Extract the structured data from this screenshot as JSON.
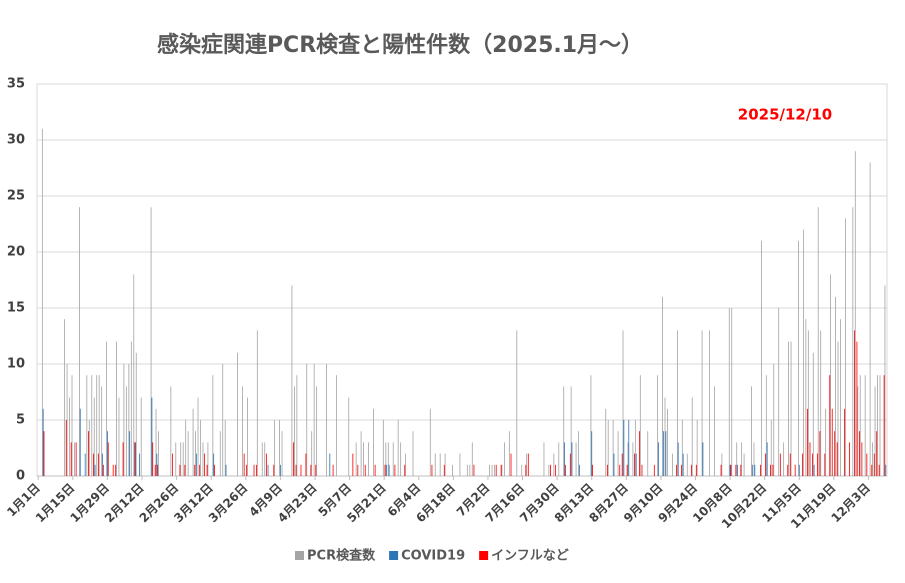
{
  "chart_data": {
    "type": "bar",
    "title": "感染症関連PCR検査と陽性件数（2025.1月～）",
    "annotation": "2025/12/10",
    "annotation_color": "#ff0000",
    "ylim": [
      0,
      35
    ],
    "yticks": [
      0,
      5,
      10,
      15,
      20,
      25,
      30,
      35
    ],
    "grid": true,
    "legend": "bottom",
    "categories": [
      "1月1日",
      null,
      null,
      null,
      null,
      null,
      null,
      null,
      null,
      null,
      null,
      null,
      null,
      null,
      "1月15日",
      null,
      null,
      null,
      null,
      null,
      null,
      null,
      null,
      null,
      null,
      null,
      null,
      null,
      "1月29日",
      null,
      null,
      null,
      null,
      null,
      null,
      null,
      null,
      null,
      null,
      null,
      null,
      null,
      "2月12日",
      null,
      null,
      null,
      null,
      null,
      null,
      null,
      null,
      null,
      null,
      null,
      null,
      null,
      "2月26日",
      null,
      null,
      null,
      null,
      null,
      null,
      null,
      null,
      null,
      null,
      null,
      null,
      null,
      "3月12日",
      null,
      null,
      null,
      null,
      null,
      null,
      null,
      null,
      null,
      null,
      null,
      null,
      null,
      "3月26日",
      null,
      null,
      null,
      null,
      null,
      null,
      null,
      null,
      null,
      null,
      null,
      null,
      null,
      "4月9日",
      null,
      null,
      null,
      null,
      null,
      null,
      null,
      null,
      null,
      null,
      null,
      null,
      null,
      "4月23日",
      null,
      null,
      null,
      null,
      null,
      null,
      null,
      null,
      null,
      null,
      null,
      null,
      null,
      "5月7日",
      null,
      null,
      null,
      null,
      null,
      null,
      null,
      null,
      null,
      null,
      null,
      null,
      null,
      "5月21日",
      null,
      null,
      null,
      null,
      null,
      null,
      null,
      null,
      null,
      null,
      null,
      null,
      null,
      "6月4日",
      null,
      null,
      null,
      null,
      null,
      null,
      null,
      null,
      null,
      null,
      null,
      null,
      null,
      "6月18日",
      null,
      null,
      null,
      null,
      null,
      null,
      null,
      null,
      null,
      null,
      null,
      null,
      null,
      "7月2日",
      null,
      null,
      null,
      null,
      null,
      null,
      null,
      null,
      null,
      null,
      null,
      null,
      null,
      "7月16日",
      null,
      null,
      null,
      null,
      null,
      null,
      null,
      null,
      null,
      null,
      null,
      null,
      null,
      "7月30日",
      null,
      null,
      null,
      null,
      null,
      null,
      null,
      null,
      null,
      null,
      null,
      null,
      null,
      "8月13日",
      null,
      null,
      null,
      null,
      null,
      null,
      null,
      null,
      null,
      null,
      null,
      null,
      null,
      "8月27日",
      null,
      null,
      null,
      null,
      null,
      null,
      null,
      null,
      null,
      null,
      null,
      null,
      null,
      "9月10日",
      null,
      null,
      null,
      null,
      null,
      null,
      null,
      null,
      null,
      null,
      null,
      null,
      null,
      "9月24日",
      null,
      null,
      null,
      null,
      null,
      null,
      null,
      null,
      null,
      null,
      null,
      null,
      null,
      "10月8日",
      null,
      null,
      null,
      null,
      null,
      null,
      null,
      null,
      null,
      null,
      null,
      null,
      null,
      "10月22日",
      null,
      null,
      null,
      null,
      null,
      null,
      null,
      null,
      null,
      null,
      null,
      null,
      null,
      "11月5日",
      null,
      null,
      null,
      null,
      null,
      null,
      null,
      null,
      null,
      null,
      null,
      null,
      null,
      "11月19日",
      null,
      null,
      null,
      null,
      null,
      null,
      null,
      null,
      null,
      null,
      null,
      null,
      null,
      "12月3日",
      null,
      null,
      null,
      null,
      null,
      null,
      null
    ],
    "series": [
      {
        "name": "PCR検査数",
        "color": "#a5a5a5",
        "values": [
          0,
          0,
          31,
          0,
          0,
          0,
          0,
          0,
          0,
          0,
          0,
          14,
          10,
          7,
          9,
          3,
          0,
          24,
          0,
          0,
          9,
          5,
          9,
          7,
          9,
          9,
          8,
          0,
          12,
          0,
          0,
          0,
          12,
          7,
          0,
          10,
          8,
          10,
          12,
          18,
          11,
          0,
          7,
          0,
          0,
          0,
          24,
          0,
          6,
          4,
          0,
          0,
          0,
          0,
          8,
          0,
          3,
          0,
          3,
          3,
          5,
          4,
          0,
          6,
          4,
          7,
          5,
          3,
          0,
          3,
          0,
          9,
          0,
          0,
          4,
          10,
          5,
          0,
          0,
          0,
          0,
          11,
          0,
          8,
          0,
          7,
          0,
          0,
          0,
          13,
          0,
          3,
          3,
          0,
          0,
          0,
          5,
          0,
          5,
          4,
          0,
          0,
          0,
          17,
          8,
          9,
          0,
          0,
          0,
          10,
          0,
          4,
          10,
          8,
          0,
          0,
          0,
          10,
          0,
          0,
          0,
          9,
          0,
          0,
          0,
          0,
          7,
          0,
          0,
          3,
          0,
          4,
          3,
          0,
          3,
          0,
          6,
          0,
          0,
          0,
          5,
          3,
          3,
          0,
          3,
          0,
          5,
          3,
          0,
          2,
          0,
          0,
          4,
          0,
          0,
          0,
          0,
          0,
          0,
          6,
          0,
          2,
          0,
          2,
          0,
          2,
          0,
          0,
          1,
          0,
          0,
          2,
          0,
          0,
          1,
          1,
          3,
          0,
          0,
          0,
          0,
          0,
          0,
          1,
          1,
          1,
          0,
          0,
          1,
          3,
          0,
          4,
          0,
          0,
          13,
          0,
          1,
          0,
          2,
          0,
          0,
          0,
          0,
          0,
          0,
          3,
          0,
          1,
          0,
          2,
          0,
          3,
          0,
          8,
          0,
          0,
          8,
          0,
          3,
          4,
          0,
          0,
          0,
          0,
          9,
          0,
          0,
          0,
          0,
          0,
          6,
          5,
          0,
          5,
          0,
          4,
          0,
          13,
          0,
          3,
          0,
          3,
          5,
          0,
          9,
          0,
          0,
          4,
          0,
          0,
          0,
          9,
          0,
          16,
          7,
          6,
          0,
          2,
          0,
          13,
          0,
          5,
          0,
          2,
          0,
          7,
          0,
          5,
          0,
          13,
          0,
          0,
          13,
          0,
          8,
          0,
          0,
          2,
          0,
          0,
          15,
          15,
          0,
          3,
          0,
          3,
          2,
          0,
          0,
          8,
          3,
          0,
          0,
          21,
          0,
          9,
          0,
          5,
          10,
          0,
          15,
          0,
          3,
          0,
          12,
          12,
          0,
          0,
          21,
          0,
          22,
          14,
          13,
          0,
          11,
          0,
          24,
          13,
          0,
          6,
          0,
          18,
          0,
          16,
          12,
          14,
          0,
          23,
          0,
          0,
          24,
          29,
          8,
          9,
          0,
          9,
          0,
          28,
          3,
          8,
          9,
          9,
          0,
          17
        ]
      },
      {
        "name": "COVID19",
        "color": "#2e75b6",
        "values": [
          0,
          0,
          6,
          0,
          0,
          0,
          0,
          0,
          0,
          0,
          0,
          0,
          0,
          0,
          0,
          0,
          0,
          6,
          0,
          2,
          0,
          0,
          0,
          1,
          0,
          0,
          2,
          0,
          4,
          0,
          0,
          0,
          0,
          0,
          0,
          0,
          0,
          4,
          0,
          3,
          0,
          2,
          0,
          0,
          0,
          0,
          7,
          0,
          2,
          0,
          0,
          0,
          0,
          0,
          0,
          0,
          0,
          0,
          0,
          0,
          0,
          0,
          0,
          0,
          2,
          0,
          0,
          0,
          0,
          0,
          0,
          2,
          0,
          0,
          0,
          0,
          1,
          0,
          0,
          0,
          0,
          0,
          0,
          0,
          0,
          0,
          0,
          0,
          0,
          0,
          0,
          0,
          0,
          1,
          0,
          0,
          0,
          0,
          1,
          0,
          0,
          0,
          0,
          0,
          0,
          0,
          0,
          0,
          0,
          0,
          0,
          0,
          0,
          0,
          0,
          0,
          0,
          0,
          2,
          0,
          0,
          0,
          0,
          0,
          0,
          0,
          0,
          0,
          0,
          0,
          0,
          0,
          0,
          0,
          0,
          0,
          0,
          0,
          0,
          0,
          0,
          1,
          1,
          0,
          0,
          0,
          0,
          0,
          0,
          0,
          0,
          0,
          0,
          0,
          0,
          0,
          0,
          0,
          0,
          0,
          0,
          0,
          0,
          0,
          0,
          0,
          0,
          0,
          0,
          0,
          0,
          0,
          0,
          0,
          0,
          0,
          0,
          0,
          0,
          0,
          0,
          0,
          0,
          0,
          0,
          0,
          0,
          0,
          0,
          0,
          0,
          0,
          0,
          0,
          0,
          0,
          0,
          0,
          0,
          0,
          0,
          0,
          0,
          0,
          0,
          0,
          0,
          0,
          0,
          0,
          0,
          0,
          0,
          3,
          0,
          0,
          3,
          0,
          0,
          1,
          0,
          0,
          0,
          0,
          4,
          0,
          0,
          0,
          0,
          0,
          0,
          0,
          0,
          2,
          0,
          0,
          0,
          5,
          0,
          5,
          0,
          0,
          2,
          0,
          0,
          0,
          0,
          0,
          0,
          0,
          0,
          3,
          0,
          4,
          4,
          0,
          0,
          0,
          0,
          3,
          0,
          2,
          0,
          0,
          0,
          0,
          0,
          0,
          0,
          3,
          0,
          0,
          0,
          0,
          0,
          0,
          0,
          0,
          0,
          0,
          1,
          0,
          0,
          1,
          0,
          0,
          0,
          0,
          0,
          1,
          1,
          0,
          0,
          0,
          0,
          3,
          0,
          0,
          0,
          0,
          0,
          0,
          0,
          0,
          0,
          0,
          0,
          0,
          1,
          0,
          0,
          0,
          0,
          0,
          1,
          0,
          0,
          0,
          0,
          0,
          0,
          0,
          0,
          0,
          0,
          0,
          0,
          0,
          0,
          0,
          0,
          0,
          0,
          0,
          0,
          0,
          0,
          0,
          0,
          0,
          0,
          0,
          0,
          1
        ]
      },
      {
        "name": "インフルなど",
        "color": "#ff0000",
        "values": [
          0,
          0,
          4,
          0,
          0,
          0,
          0,
          0,
          0,
          0,
          0,
          5,
          0,
          3,
          0,
          3,
          0,
          0,
          0,
          0,
          4,
          0,
          2,
          0,
          2,
          0,
          1,
          0,
          3,
          0,
          1,
          1,
          0,
          0,
          3,
          0,
          0,
          0,
          0,
          3,
          0,
          0,
          0,
          0,
          0,
          0,
          3,
          1,
          1,
          0,
          0,
          0,
          0,
          0,
          2,
          0,
          0,
          1,
          0,
          1,
          0,
          0,
          0,
          1,
          0,
          1,
          0,
          2,
          1,
          0,
          0,
          1,
          0,
          0,
          0,
          0,
          0,
          0,
          0,
          0,
          0,
          0,
          0,
          2,
          1,
          0,
          0,
          1,
          1,
          0,
          0,
          0,
          2,
          0,
          0,
          1,
          0,
          0,
          0,
          0,
          0,
          0,
          0,
          3,
          1,
          0,
          1,
          0,
          2,
          0,
          1,
          0,
          1,
          0,
          0,
          0,
          0,
          0,
          0,
          1,
          0,
          0,
          0,
          0,
          0,
          0,
          0,
          2,
          0,
          1,
          0,
          0,
          1,
          0,
          0,
          0,
          1,
          0,
          0,
          0,
          1,
          0,
          0,
          0,
          1,
          0,
          0,
          0,
          1,
          0,
          0,
          0,
          0,
          0,
          0,
          0,
          0,
          0,
          0,
          1,
          0,
          0,
          0,
          0,
          1,
          0,
          0,
          0,
          0,
          0,
          0,
          0,
          0,
          0,
          0,
          0,
          1,
          0,
          0,
          0,
          0,
          0,
          0,
          0,
          0,
          1,
          0,
          1,
          0,
          0,
          0,
          2,
          0,
          0,
          0,
          0,
          0,
          1,
          2,
          0,
          0,
          0,
          0,
          0,
          0,
          0,
          0,
          1,
          0,
          1,
          0,
          0,
          0,
          1,
          0,
          2,
          0,
          0,
          0,
          0,
          0,
          0,
          0,
          0,
          1,
          0,
          0,
          0,
          0,
          0,
          1,
          0,
          0,
          0,
          0,
          1,
          2,
          0,
          1,
          0,
          0,
          2,
          0,
          4,
          1,
          0,
          0,
          0,
          0,
          1,
          0,
          0,
          0,
          0,
          0,
          0,
          0,
          0,
          1,
          0,
          1,
          0,
          0,
          0,
          1,
          0,
          1,
          0,
          0,
          0,
          0,
          0,
          0,
          0,
          0,
          0,
          1,
          0,
          0,
          0,
          1,
          0,
          1,
          0,
          1,
          0,
          0,
          0,
          0,
          0,
          0,
          0,
          1,
          0,
          2,
          0,
          1,
          1,
          0,
          0,
          2,
          0,
          0,
          1,
          2,
          0,
          1,
          0,
          0,
          2,
          0,
          6,
          3,
          2,
          0,
          2,
          4,
          0,
          2,
          0,
          9,
          6,
          4,
          3,
          0,
          0,
          6,
          0,
          3,
          0,
          13,
          12,
          4,
          3,
          0,
          2,
          0,
          1,
          2,
          4,
          1,
          0,
          9,
          0
        ]
      }
    ]
  }
}
